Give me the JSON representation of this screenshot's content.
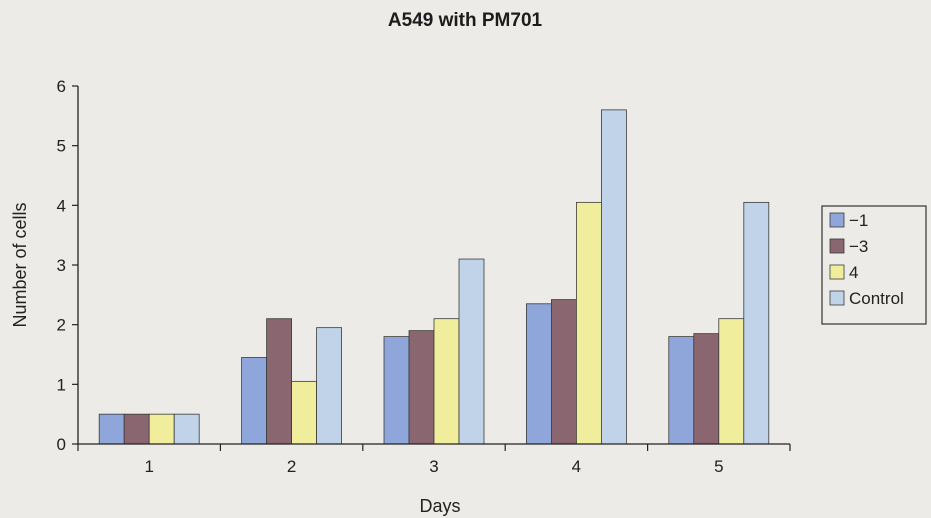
{
  "chart_data": {
    "type": "bar",
    "title": "A549 with PM701",
    "xlabel": "Days",
    "ylabel": "Number of cells",
    "categories": [
      "1",
      "2",
      "3",
      "4",
      "5"
    ],
    "ylim": [
      0,
      6
    ],
    "yticks": [
      0,
      1,
      2,
      3,
      4,
      5,
      6
    ],
    "grid": false,
    "legend_position": "right",
    "series": [
      {
        "name": "−1",
        "color": "#8ea6d9",
        "values": [
          0.5,
          1.45,
          1.8,
          2.35,
          1.8
        ]
      },
      {
        "name": "−3",
        "color": "#8a6670",
        "values": [
          0.5,
          2.1,
          1.9,
          2.42,
          1.85
        ]
      },
      {
        "name": "4",
        "color": "#f0ee9c",
        "values": [
          0.5,
          1.05,
          2.1,
          4.05,
          2.1
        ]
      },
      {
        "name": "Control",
        "color": "#c0d3e8",
        "values": [
          0.5,
          1.95,
          3.1,
          5.6,
          4.05
        ]
      }
    ]
  }
}
